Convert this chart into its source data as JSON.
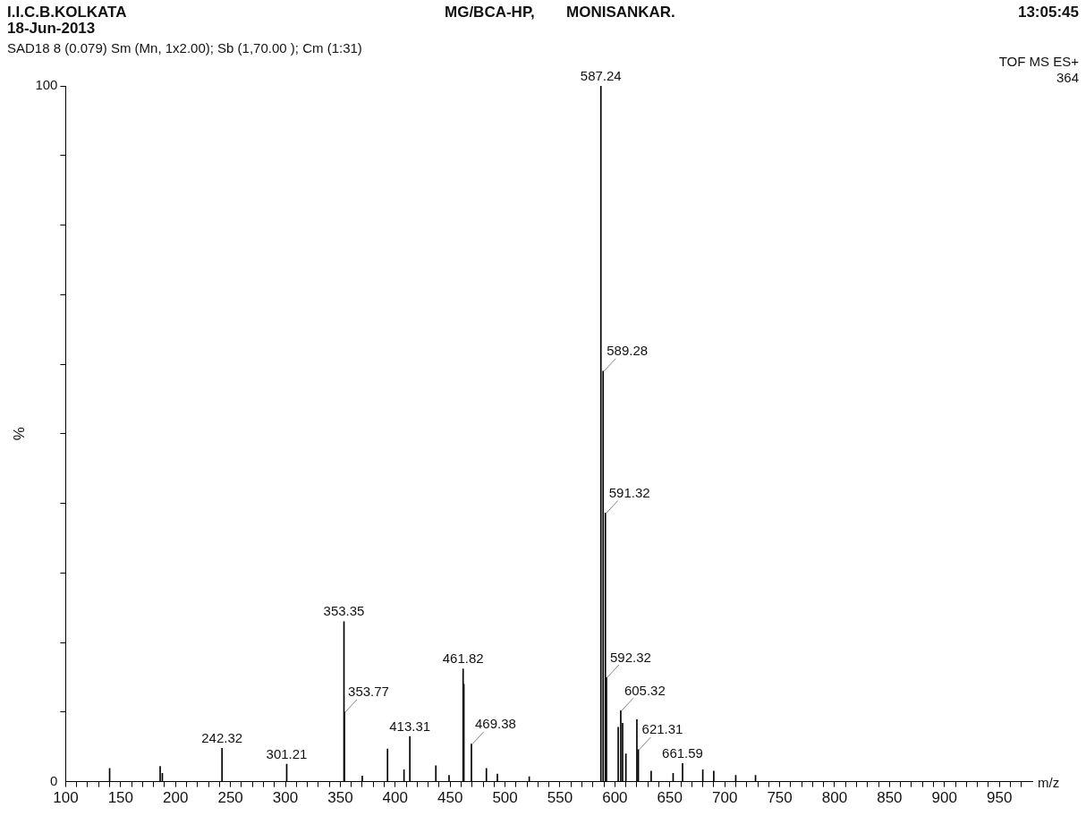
{
  "chart_data": {
    "type": "bar",
    "title": "I.I.C.B.KOLKATA",
    "subtitle": "18-Jun-2013",
    "xlabel": "m/z",
    "ylabel": "%",
    "annotations": [
      "MG/BCA-HP,",
      "MONISANKAR.",
      "13:05:45",
      "SAD18  8 (0.079) Sm (Mn, 1x2.00); Sb (1,70.00 ); Cm (1:31)",
      "TOF MS ES+",
      "364",
      {
        "text": "587.24",
        "x": 587.24,
        "y": 100
      },
      {
        "text": "589.28",
        "x": 589.28,
        "y": 59
      },
      {
        "text": "591.32",
        "x": 591.32,
        "y": 38.6
      },
      {
        "text": "592.32",
        "x": 592.32,
        "y": 15
      },
      {
        "text": "353.35",
        "x": 353.35,
        "y": 23
      },
      {
        "text": "353.77",
        "x": 353.77,
        "y": 10
      },
      {
        "text": "461.82",
        "x": 461.82,
        "y": 16.2
      },
      {
        "text": "469.38",
        "x": 469.38,
        "y": 5.4
      },
      {
        "text": "413.31",
        "x": 413.31,
        "y": 6.5
      },
      {
        "text": "242.32",
        "x": 242.32,
        "y": 4.8
      },
      {
        "text": "301.21",
        "x": 301.21,
        "y": 2.5
      },
      {
        "text": "605.32",
        "x": 605.32,
        "y": 10.2
      },
      {
        "text": "621.31",
        "x": 621.31,
        "y": 4.6
      },
      {
        "text": "661.59",
        "x": 661.59,
        "y": 2.6
      }
    ],
    "x": [
      140,
      186,
      188,
      242.32,
      301.21,
      353.35,
      353.77,
      370,
      393,
      408,
      413.31,
      437,
      449,
      461.82,
      462.5,
      469.38,
      483,
      493,
      522,
      587.24,
      589.28,
      591.32,
      592.32,
      603,
      605.32,
      607,
      610,
      620,
      621.31,
      633,
      653,
      661.59,
      680,
      690,
      710,
      728
    ],
    "values": [
      1.9,
      2.2,
      1.2,
      4.8,
      2.5,
      23,
      10,
      0.8,
      4.7,
      1.7,
      6.5,
      2.3,
      0.9,
      16.2,
      14,
      5.4,
      1.9,
      1.1,
      0.7,
      100,
      59,
      38.6,
      15,
      7.8,
      10.2,
      8.4,
      4,
      8.9,
      4.6,
      1.5,
      1.2,
      2.6,
      1.7,
      1.5,
      0.9,
      0.9
    ],
    "color": "#000000",
    "xlim": [
      100,
      980
    ],
    "xticks": [
      100,
      {
        "value": 110,
        "label": null
      },
      {
        "value": 120,
        "label": null
      },
      {
        "value": 130,
        "label": null
      },
      {
        "value": 140,
        "label": null
      },
      150,
      {
        "value": 160,
        "label": null
      },
      {
        "value": 170,
        "label": null
      },
      {
        "value": 180,
        "label": null
      },
      {
        "value": 190,
        "label": null
      },
      200,
      {
        "value": 210,
        "label": null
      },
      {
        "value": 220,
        "label": null
      },
      {
        "value": 230,
        "label": null
      },
      {
        "value": 240,
        "label": null
      },
      250,
      {
        "value": 260,
        "label": null
      },
      {
        "value": 270,
        "label": null
      },
      {
        "value": 280,
        "label": null
      },
      {
        "value": 290,
        "label": null
      },
      300,
      {
        "value": 310,
        "label": null
      },
      {
        "value": 320,
        "label": null
      },
      {
        "value": 330,
        "label": null
      },
      {
        "value": 340,
        "label": null
      },
      350,
      {
        "value": 360,
        "label": null
      },
      {
        "value": 370,
        "label": null
      },
      {
        "value": 380,
        "label": null
      },
      {
        "value": 390,
        "label": null
      },
      400,
      {
        "value": 410,
        "label": null
      },
      {
        "value": 420,
        "label": null
      },
      {
        "value": 430,
        "label": null
      },
      {
        "value": 440,
        "label": null
      },
      450,
      {
        "value": 460,
        "label": null
      },
      {
        "value": 470,
        "label": null
      },
      {
        "value": 480,
        "label": null
      },
      {
        "value": 490,
        "label": null
      },
      500,
      {
        "value": 510,
        "label": null
      },
      {
        "value": 520,
        "label": null
      },
      {
        "value": 530,
        "label": null
      },
      {
        "value": 540,
        "label": null
      },
      550,
      {
        "value": 560,
        "label": null
      },
      {
        "value": 570,
        "label": null
      },
      {
        "value": 580,
        "label": null
      },
      {
        "value": 590,
        "label": null
      },
      600,
      {
        "value": 610,
        "label": null
      },
      {
        "value": 620,
        "label": null
      },
      {
        "value": 630,
        "label": null
      },
      {
        "value": 640,
        "label": null
      },
      650,
      {
        "value": 660,
        "label": null
      },
      {
        "value": 670,
        "label": null
      },
      {
        "value": 680,
        "label": null
      },
      {
        "value": 690,
        "label": null
      },
      700,
      {
        "value": 710,
        "label": null
      },
      {
        "value": 720,
        "label": null
      },
      {
        "value": 730,
        "label": null
      },
      {
        "value": 740,
        "label": null
      },
      750,
      {
        "value": 760,
        "label": null
      },
      {
        "value": 770,
        "label": null
      },
      {
        "value": 780,
        "label": null
      },
      {
        "value": 790,
        "label": null
      },
      800,
      {
        "value": 810,
        "label": null
      },
      {
        "value": 820,
        "label": null
      },
      {
        "value": 830,
        "label": null
      },
      {
        "value": 840,
        "label": null
      },
      850,
      {
        "value": 860,
        "label": null
      },
      {
        "value": 870,
        "label": null
      },
      {
        "value": 880,
        "label": null
      },
      {
        "value": 890,
        "label": null
      },
      900,
      {
        "value": 910,
        "label": null
      },
      {
        "value": 920,
        "label": null
      },
      {
        "value": 930,
        "label": null
      },
      {
        "value": 940,
        "label": null
      },
      950,
      {
        "value": 960,
        "label": null
      },
      {
        "value": 970,
        "label": null
      }
    ],
    "ylim": [
      0,
      100
    ],
    "yticks": [
      0,
      {
        "value": 10,
        "label": null
      },
      {
        "value": 20,
        "label": null
      },
      {
        "value": 30,
        "label": null
      },
      {
        "value": 40,
        "label": null
      },
      {
        "value": 50,
        "label": null
      },
      {
        "value": 60,
        "label": null
      },
      {
        "value": 70,
        "label": null
      },
      {
        "value": 80,
        "label": null
      },
      {
        "value": 90,
        "label": null
      },
      100
    ]
  }
}
